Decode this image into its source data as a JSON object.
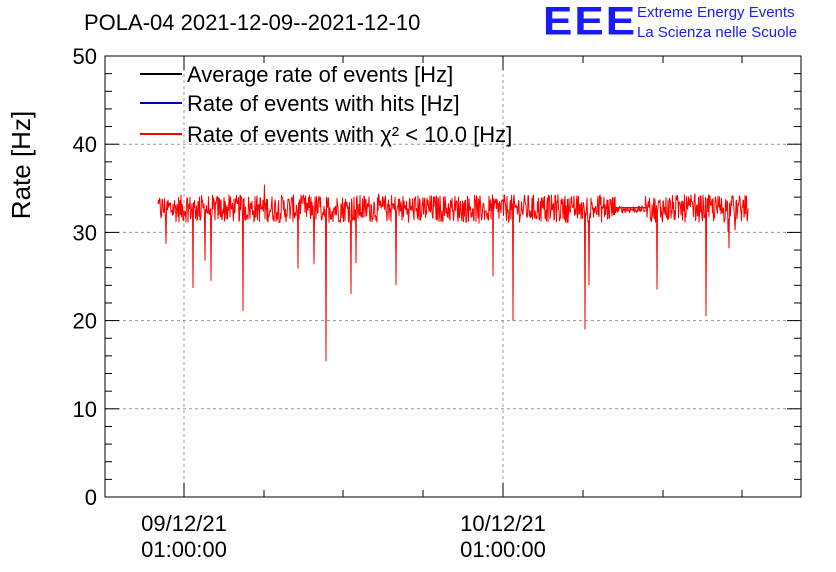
{
  "header": {
    "logo_letters": "EEE",
    "logo_line1": "Extreme Energy Events",
    "logo_line2": "La Scienza nelle Scuole"
  },
  "colors": {
    "average": "#000000",
    "hits": "#0000cc",
    "chi2": "#ff0000",
    "logo": "#1a1aff",
    "grid": "#999999"
  },
  "chart_data": {
    "type": "line",
    "title": "POLA-04 2021-12-09--2021-12-10",
    "ylabel": "Rate [Hz]",
    "xlabel": "",
    "ylim": [
      0,
      50
    ],
    "yticks": [
      "0",
      "10",
      "20",
      "30",
      "40",
      "50"
    ],
    "xticks": [
      {
        "date": "09/12/21",
        "time": "01:00:00"
      },
      {
        "date": "10/12/21",
        "time": "01:00:00"
      }
    ],
    "grid": true,
    "legend_position": "top-left",
    "series": [
      {
        "name": "Average rate of events [Hz]",
        "color": "#000000",
        "approx_mean": 33
      },
      {
        "name": "Rate of events with hits [Hz]",
        "color": "#0000cc",
        "approx_mean": 33
      },
      {
        "name": "Rate of events with χ² < 10.0 [Hz]",
        "color": "#ff0000",
        "approx_mean": 32.7,
        "min_dips": [
          28.7,
          23.7,
          26.8,
          24.5,
          21.1,
          25.9,
          26.4,
          15.4,
          23.0,
          26.5,
          24.0,
          25.0,
          20.0,
          19.0,
          24.0,
          23.5,
          20.5,
          28.2
        ]
      }
    ]
  }
}
